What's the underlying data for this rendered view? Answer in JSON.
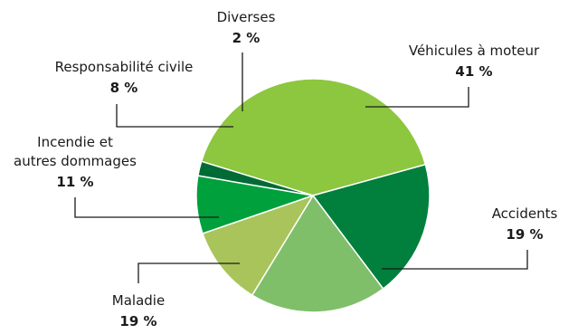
{
  "chart_data": {
    "type": "pie",
    "title": "",
    "slices": [
      {
        "label_lines": [
          "Véhicules à moteur"
        ],
        "value": 41,
        "value_label": "41 %",
        "color": "#8dc63f"
      },
      {
        "label_lines": [
          "Accidents"
        ],
        "value": 19,
        "value_label": "19 %",
        "color": "#007f3d"
      },
      {
        "label_lines": [
          "Maladie"
        ],
        "value": 19,
        "value_label": "19 %",
        "color": "#7fbf6a"
      },
      {
        "label_lines": [
          "Incendie et",
          "autres dommages"
        ],
        "value": 11,
        "value_label": "11 %",
        "color": "#a9c45a"
      },
      {
        "label_lines": [
          "Responsabilité civile"
        ],
        "value": 8,
        "value_label": "8 %",
        "color": "#00a03c"
      },
      {
        "label_lines": [
          "Diverses"
        ],
        "value": 2,
        "value_label": "2 %",
        "color": "#006b35"
      }
    ]
  }
}
